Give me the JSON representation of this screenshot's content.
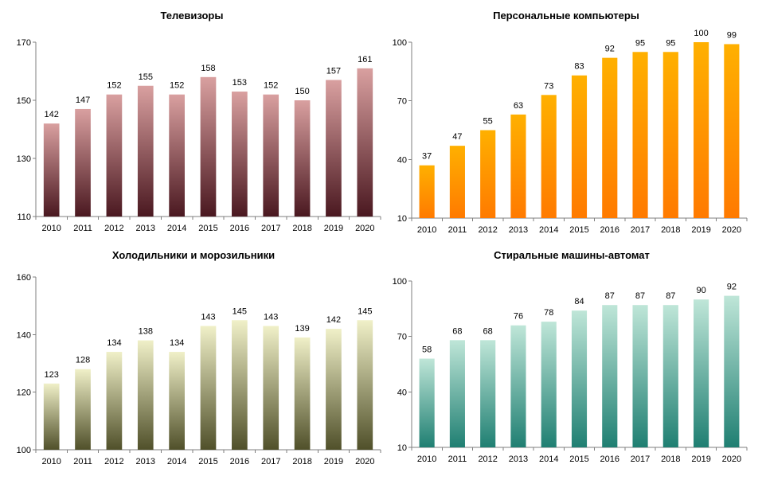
{
  "chart_data": [
    {
      "type": "bar",
      "title": "Телевизоры",
      "categories": [
        "2010",
        "2011",
        "2012",
        "2013",
        "2014",
        "2015",
        "2016",
        "2017",
        "2018",
        "2019",
        "2020"
      ],
      "values": [
        142,
        147,
        152,
        155,
        152,
        158,
        153,
        152,
        150,
        157,
        161
      ],
      "yticks": [
        "110",
        "130",
        "150",
        "170"
      ],
      "ylim": [
        110,
        170
      ],
      "grid": false,
      "colors": {
        "top": "#d9a0a0",
        "bottom": "#4a1820"
      }
    },
    {
      "type": "bar",
      "title": "Персональные компьютеры",
      "categories": [
        "2010",
        "2011",
        "2012",
        "2013",
        "2014",
        "2015",
        "2016",
        "2017",
        "2018",
        "2019",
        "2020"
      ],
      "values": [
        37,
        47,
        55,
        63,
        73,
        83,
        92,
        95,
        95,
        100,
        99
      ],
      "yticks": [
        "10",
        "40",
        "70",
        "100"
      ],
      "ylim": [
        10,
        100
      ],
      "grid": false,
      "colors": {
        "top": "#ffb000",
        "bottom": "#ff7a00"
      }
    },
    {
      "type": "bar",
      "title": "Холодильники и морозильники",
      "categories": [
        "2010",
        "2011",
        "2012",
        "2013",
        "2014",
        "2015",
        "2016",
        "2017",
        "2018",
        "2019",
        "2020"
      ],
      "values": [
        123,
        128,
        134,
        138,
        134,
        143,
        145,
        143,
        139,
        142,
        145
      ],
      "yticks": [
        "100",
        "120",
        "140",
        "160"
      ],
      "ylim": [
        100,
        160
      ],
      "grid": false,
      "colors": {
        "top": "#f0f0c8",
        "bottom": "#50502a"
      }
    },
    {
      "type": "bar",
      "title": "Стиральные машины-автомат",
      "categories": [
        "2010",
        "2011",
        "2012",
        "2013",
        "2014",
        "2015",
        "2016",
        "2017",
        "2018",
        "2019",
        "2020"
      ],
      "values": [
        58,
        68,
        68,
        76,
        78,
        84,
        87,
        87,
        87,
        90,
        92
      ],
      "yticks": [
        "10",
        "40",
        "70",
        "100"
      ],
      "ylim": [
        10,
        100
      ],
      "grid": false,
      "colors": {
        "top": "#bfe6d8",
        "bottom": "#1f7f72"
      }
    }
  ]
}
